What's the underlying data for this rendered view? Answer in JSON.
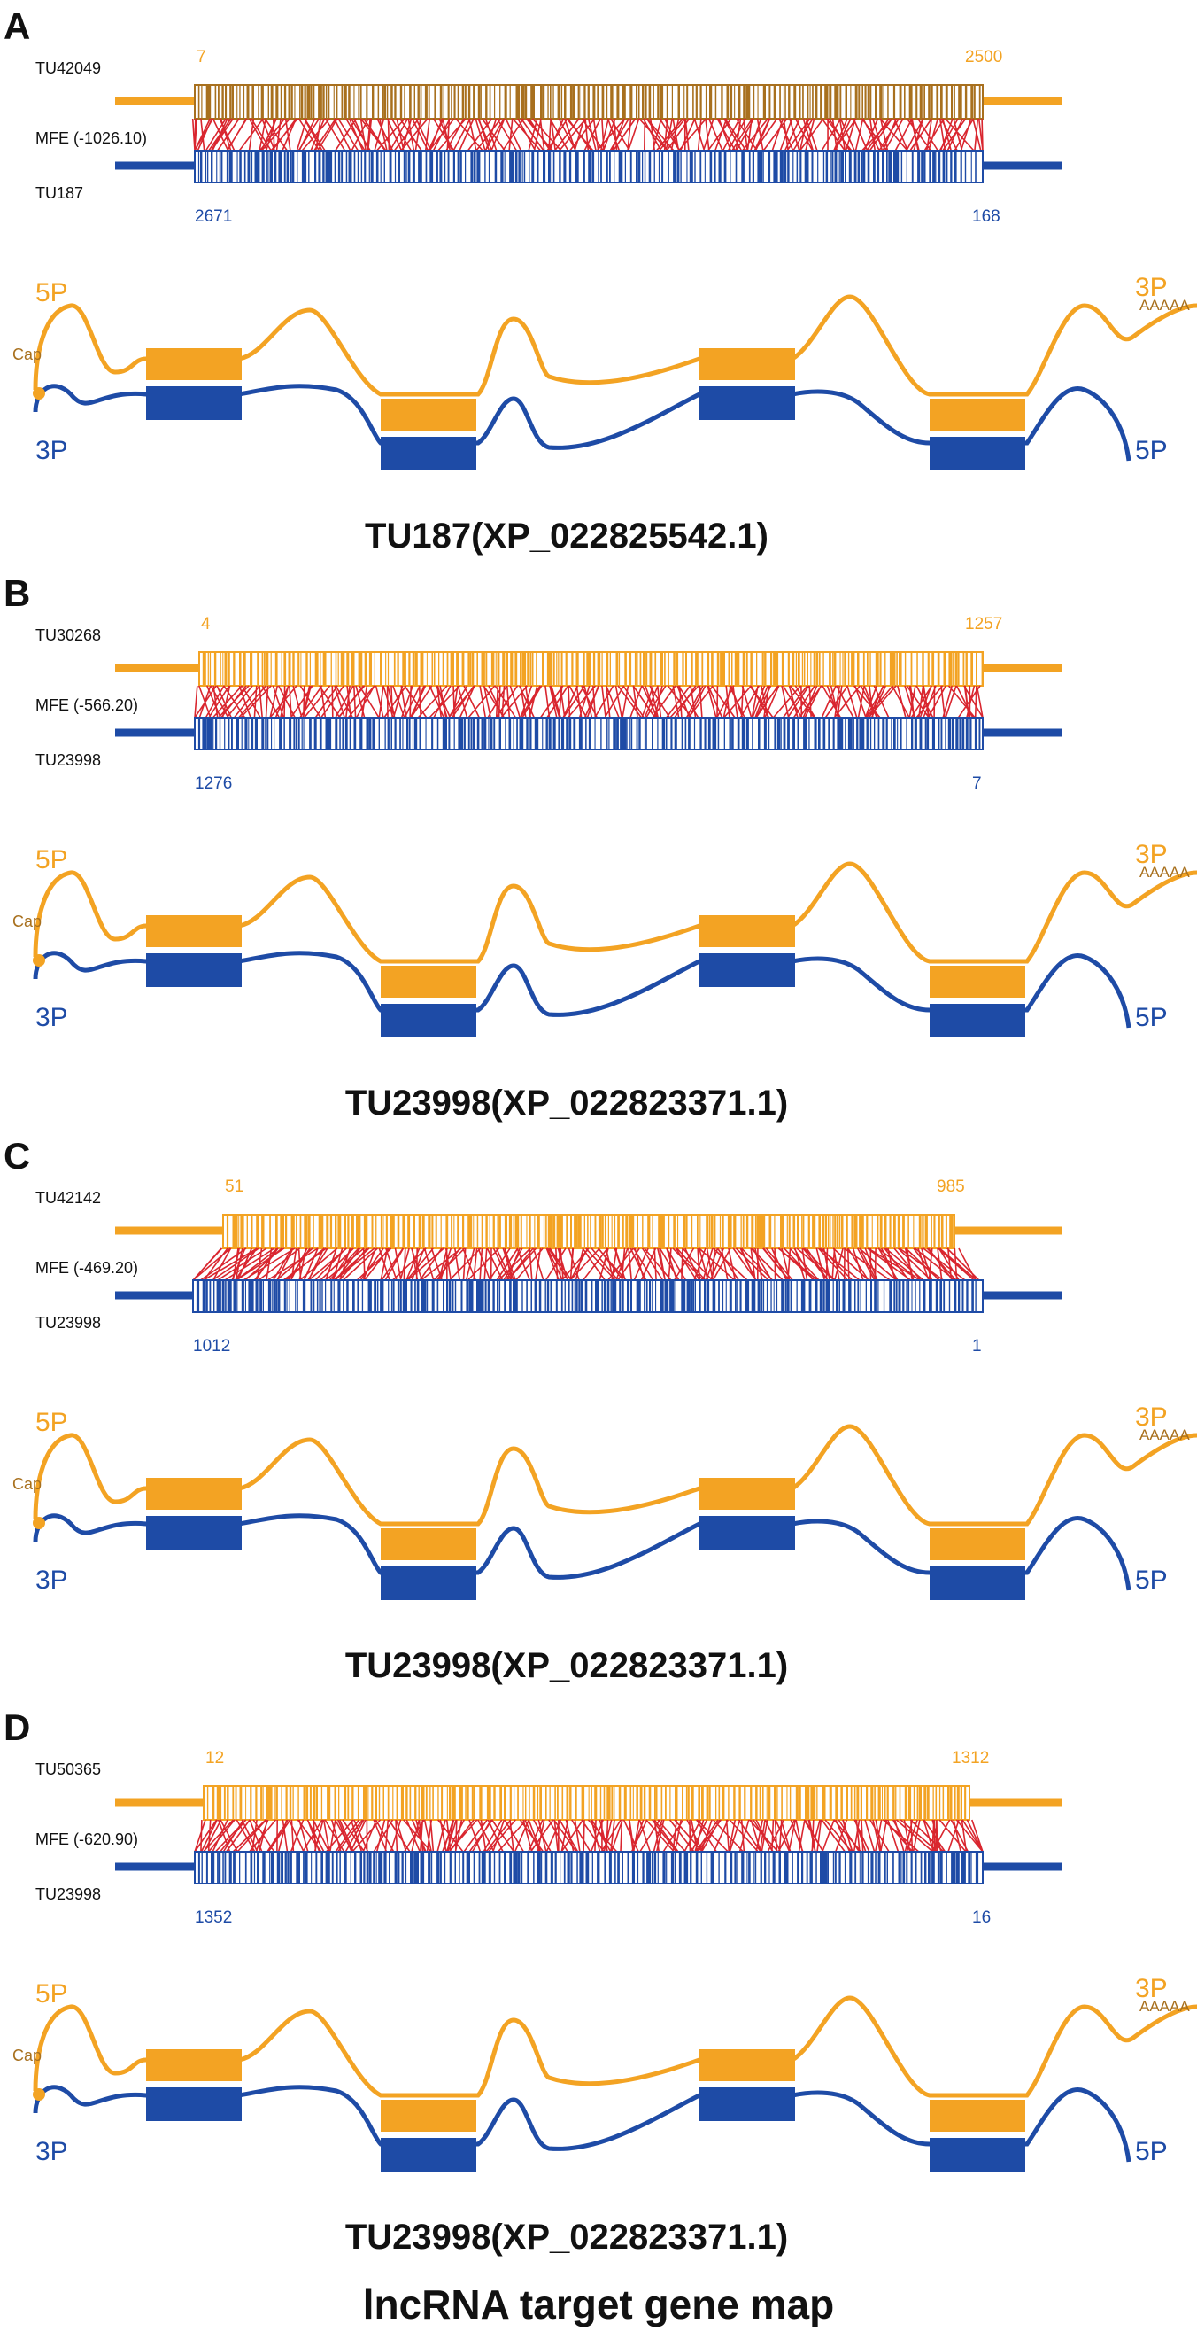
{
  "colors": {
    "orange": "#F3A323",
    "orange_dark": "#A8701E",
    "blue": "#1E4BA6",
    "red": "#D9262F",
    "black": "#111111"
  },
  "icons": {
    "cap": "cap-circle-icon"
  },
  "figure_title": "lncRNA target gene map",
  "panels": [
    {
      "letter": "A",
      "lnc_name": "TU42049",
      "mfe_label": "MFE (-1026.10)",
      "target_name": "TU187",
      "lnc_start": "7",
      "lnc_end": "2500",
      "target_start": "2671",
      "target_end": "168",
      "gene_five_prime": "5P",
      "gene_three_prime_top": "3P",
      "gene_poly_a": "AAAAA",
      "gene_cap": "Cap",
      "gene_three_prime_bottom": "3P",
      "gene_five_prime_bottom": "5P",
      "caption": "TU187(XP_022825542.1)"
    },
    {
      "letter": "B",
      "lnc_name": "TU30268",
      "mfe_label": "MFE (-566.20)",
      "target_name": "TU23998",
      "lnc_start": "4",
      "lnc_end": "1257",
      "target_start": "1276",
      "target_end": "7",
      "gene_five_prime": "5P",
      "gene_three_prime_top": "3P",
      "gene_poly_a": "AAAAA",
      "gene_cap": "Cap",
      "gene_three_prime_bottom": "3P",
      "gene_five_prime_bottom": "5P",
      "caption": "TU23998(XP_022823371.1)"
    },
    {
      "letter": "C",
      "lnc_name": "TU42142",
      "mfe_label": "MFE (-469.20)",
      "target_name": "TU23998",
      "lnc_start": "51",
      "lnc_end": "985",
      "target_start": "1012",
      "target_end": "1",
      "gene_five_prime": "5P",
      "gene_three_prime_top": "3P",
      "gene_poly_a": "AAAAA",
      "gene_cap": "Cap",
      "gene_three_prime_bottom": "3P",
      "gene_five_prime_bottom": "5P",
      "caption": "TU23998(XP_022823371.1)"
    },
    {
      "letter": "D",
      "lnc_name": "TU50365",
      "mfe_label": "MFE (-620.90)",
      "target_name": "TU23998",
      "lnc_start": "12",
      "lnc_end": "1312",
      "target_start": "1352",
      "target_end": "16",
      "gene_five_prime": "5P",
      "gene_three_prime_top": "3P",
      "gene_poly_a": "AAAAA",
      "gene_cap": "Cap",
      "gene_three_prime_bottom": "3P",
      "gene_five_prime_bottom": "5P",
      "caption": "TU23998(XP_022823371.1)"
    }
  ]
}
